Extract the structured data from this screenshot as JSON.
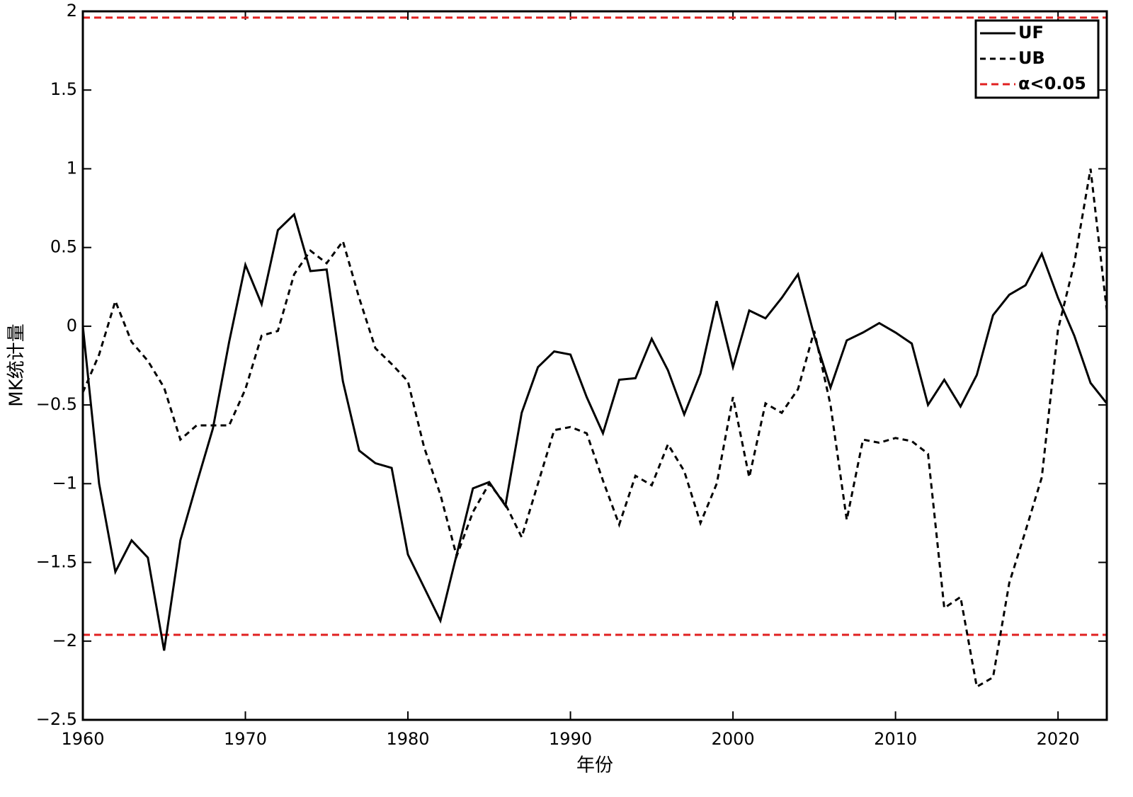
{
  "chart_data": {
    "type": "line",
    "x_label": "年份",
    "y_label": "MK统计量",
    "x": [
      1960,
      1961,
      1962,
      1963,
      1964,
      1965,
      1966,
      1967,
      1968,
      1969,
      1970,
      1971,
      1972,
      1973,
      1974,
      1975,
      1976,
      1977,
      1978,
      1979,
      1980,
      1981,
      1982,
      1983,
      1984,
      1985,
      1986,
      1987,
      1988,
      1989,
      1990,
      1991,
      1992,
      1993,
      1994,
      1995,
      1996,
      1997,
      1998,
      1999,
      2000,
      2001,
      2002,
      2003,
      2004,
      2005,
      2006,
      2007,
      2008,
      2009,
      2010,
      2011,
      2012,
      2013,
      2014,
      2015,
      2016,
      2017,
      2018,
      2019,
      2020,
      2021,
      2022,
      2023
    ],
    "series": [
      {
        "name": "UF",
        "color": "#000000",
        "dash": "solid",
        "values": [
          0,
          -1.0,
          -1.56,
          -1.36,
          -1.47,
          -2.06,
          -1.36,
          -1.0,
          -0.65,
          -0.1,
          0.39,
          0.14,
          0.61,
          0.71,
          0.35,
          0.36,
          -0.35,
          -0.79,
          -0.87,
          -0.9,
          -1.45,
          -1.66,
          -1.87,
          -1.45,
          -1.03,
          -0.99,
          -1.14,
          -0.55,
          -0.26,
          -0.16,
          -0.18,
          -0.45,
          -0.68,
          -0.34,
          -0.33,
          -0.08,
          -0.28,
          -0.56,
          -0.3,
          0.16,
          -0.26,
          0.1,
          0.05,
          0.18,
          0.33,
          -0.06,
          -0.39,
          -0.09,
          -0.04,
          0.02,
          -0.04,
          -0.11,
          -0.5,
          -0.34,
          -0.51,
          -0.31,
          0.07,
          0.2,
          0.26,
          0.46,
          0.18,
          -0.06,
          -0.36,
          -0.49
        ]
      },
      {
        "name": "UB",
        "color": "#000000",
        "dash": "dashed",
        "values": [
          -0.42,
          -0.18,
          0.16,
          -0.1,
          -0.22,
          -0.39,
          -0.72,
          -0.63,
          -0.63,
          -0.63,
          -0.4,
          -0.06,
          -0.03,
          0.33,
          0.48,
          0.4,
          0.54,
          0.18,
          -0.14,
          -0.24,
          -0.35,
          -0.77,
          -1.07,
          -1.46,
          -1.18,
          -1.0,
          -1.13,
          -1.34,
          -1.0,
          -0.66,
          -0.64,
          -0.68,
          -0.98,
          -1.26,
          -0.95,
          -1.01,
          -0.75,
          -0.92,
          -1.25,
          -1.0,
          -0.45,
          -0.96,
          -0.49,
          -0.55,
          -0.4,
          -0.03,
          -0.5,
          -1.23,
          -0.72,
          -0.74,
          -0.71,
          -0.73,
          -0.81,
          -1.79,
          -1.72,
          -2.29,
          -2.23,
          -1.63,
          -1.3,
          -0.96,
          -0.02,
          0.4,
          1.0,
          0.1
        ]
      }
    ],
    "reference_line": {
      "name": "α<0.05",
      "color": "#e02020",
      "values": [
        1.96,
        -1.96
      ]
    },
    "xlim": [
      1960,
      2023
    ],
    "ylim": [
      -2.5,
      2
    ],
    "xticks": [
      1960,
      1970,
      1980,
      1990,
      2000,
      2010,
      2020
    ],
    "yticks": [
      2,
      1.5,
      1,
      0.5,
      0,
      {
        "value": -0.5,
        "label": "−0.5"
      },
      {
        "value": -1,
        "label": "−1"
      },
      {
        "value": -1.5,
        "label": "−1.5"
      },
      {
        "value": -2,
        "label": "−2"
      },
      {
        "value": -2.5,
        "label": "−2.5"
      }
    ],
    "legend": "upper right"
  }
}
